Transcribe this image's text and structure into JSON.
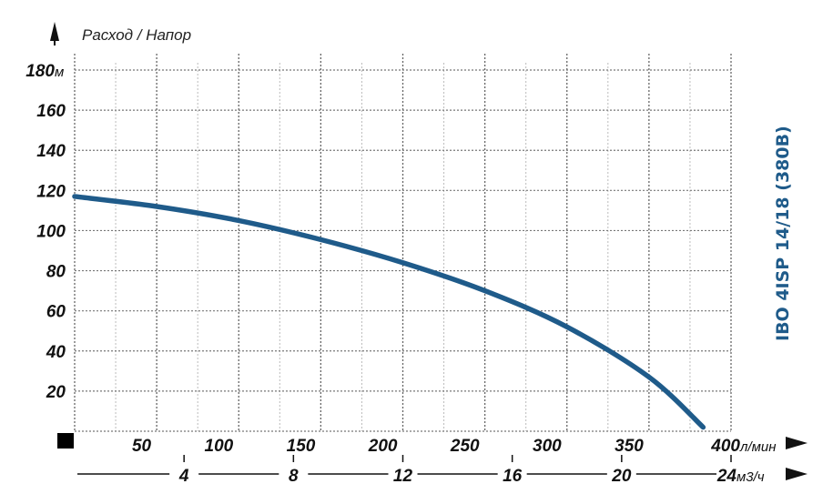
{
  "chart_data": {
    "type": "line",
    "title": "IBO 4ISP 14/18 (380В)",
    "ylabel": "Расход / Напор",
    "y_unit": "м",
    "x_unit": "л/мин",
    "x2_unit": "м3/ч",
    "xlim": [
      0,
      400
    ],
    "ylim": [
      0,
      180
    ],
    "x_ticks": [
      50,
      100,
      150,
      200,
      250,
      300,
      350,
      400
    ],
    "y_ticks": [
      20,
      40,
      60,
      80,
      100,
      120,
      140,
      160,
      180
    ],
    "x2_ticks": [
      4,
      8,
      12,
      16,
      20,
      24
    ],
    "grid": true,
    "colors": {
      "curve": "#1f5b8a",
      "title": "#1f5b8a"
    },
    "series": [
      {
        "x": [
          0,
          50,
          100,
          150,
          200,
          250,
          300,
          350,
          383
        ],
        "y": [
          117,
          112,
          105,
          95.5,
          84,
          70,
          52,
          27,
          2
        ]
      }
    ]
  }
}
